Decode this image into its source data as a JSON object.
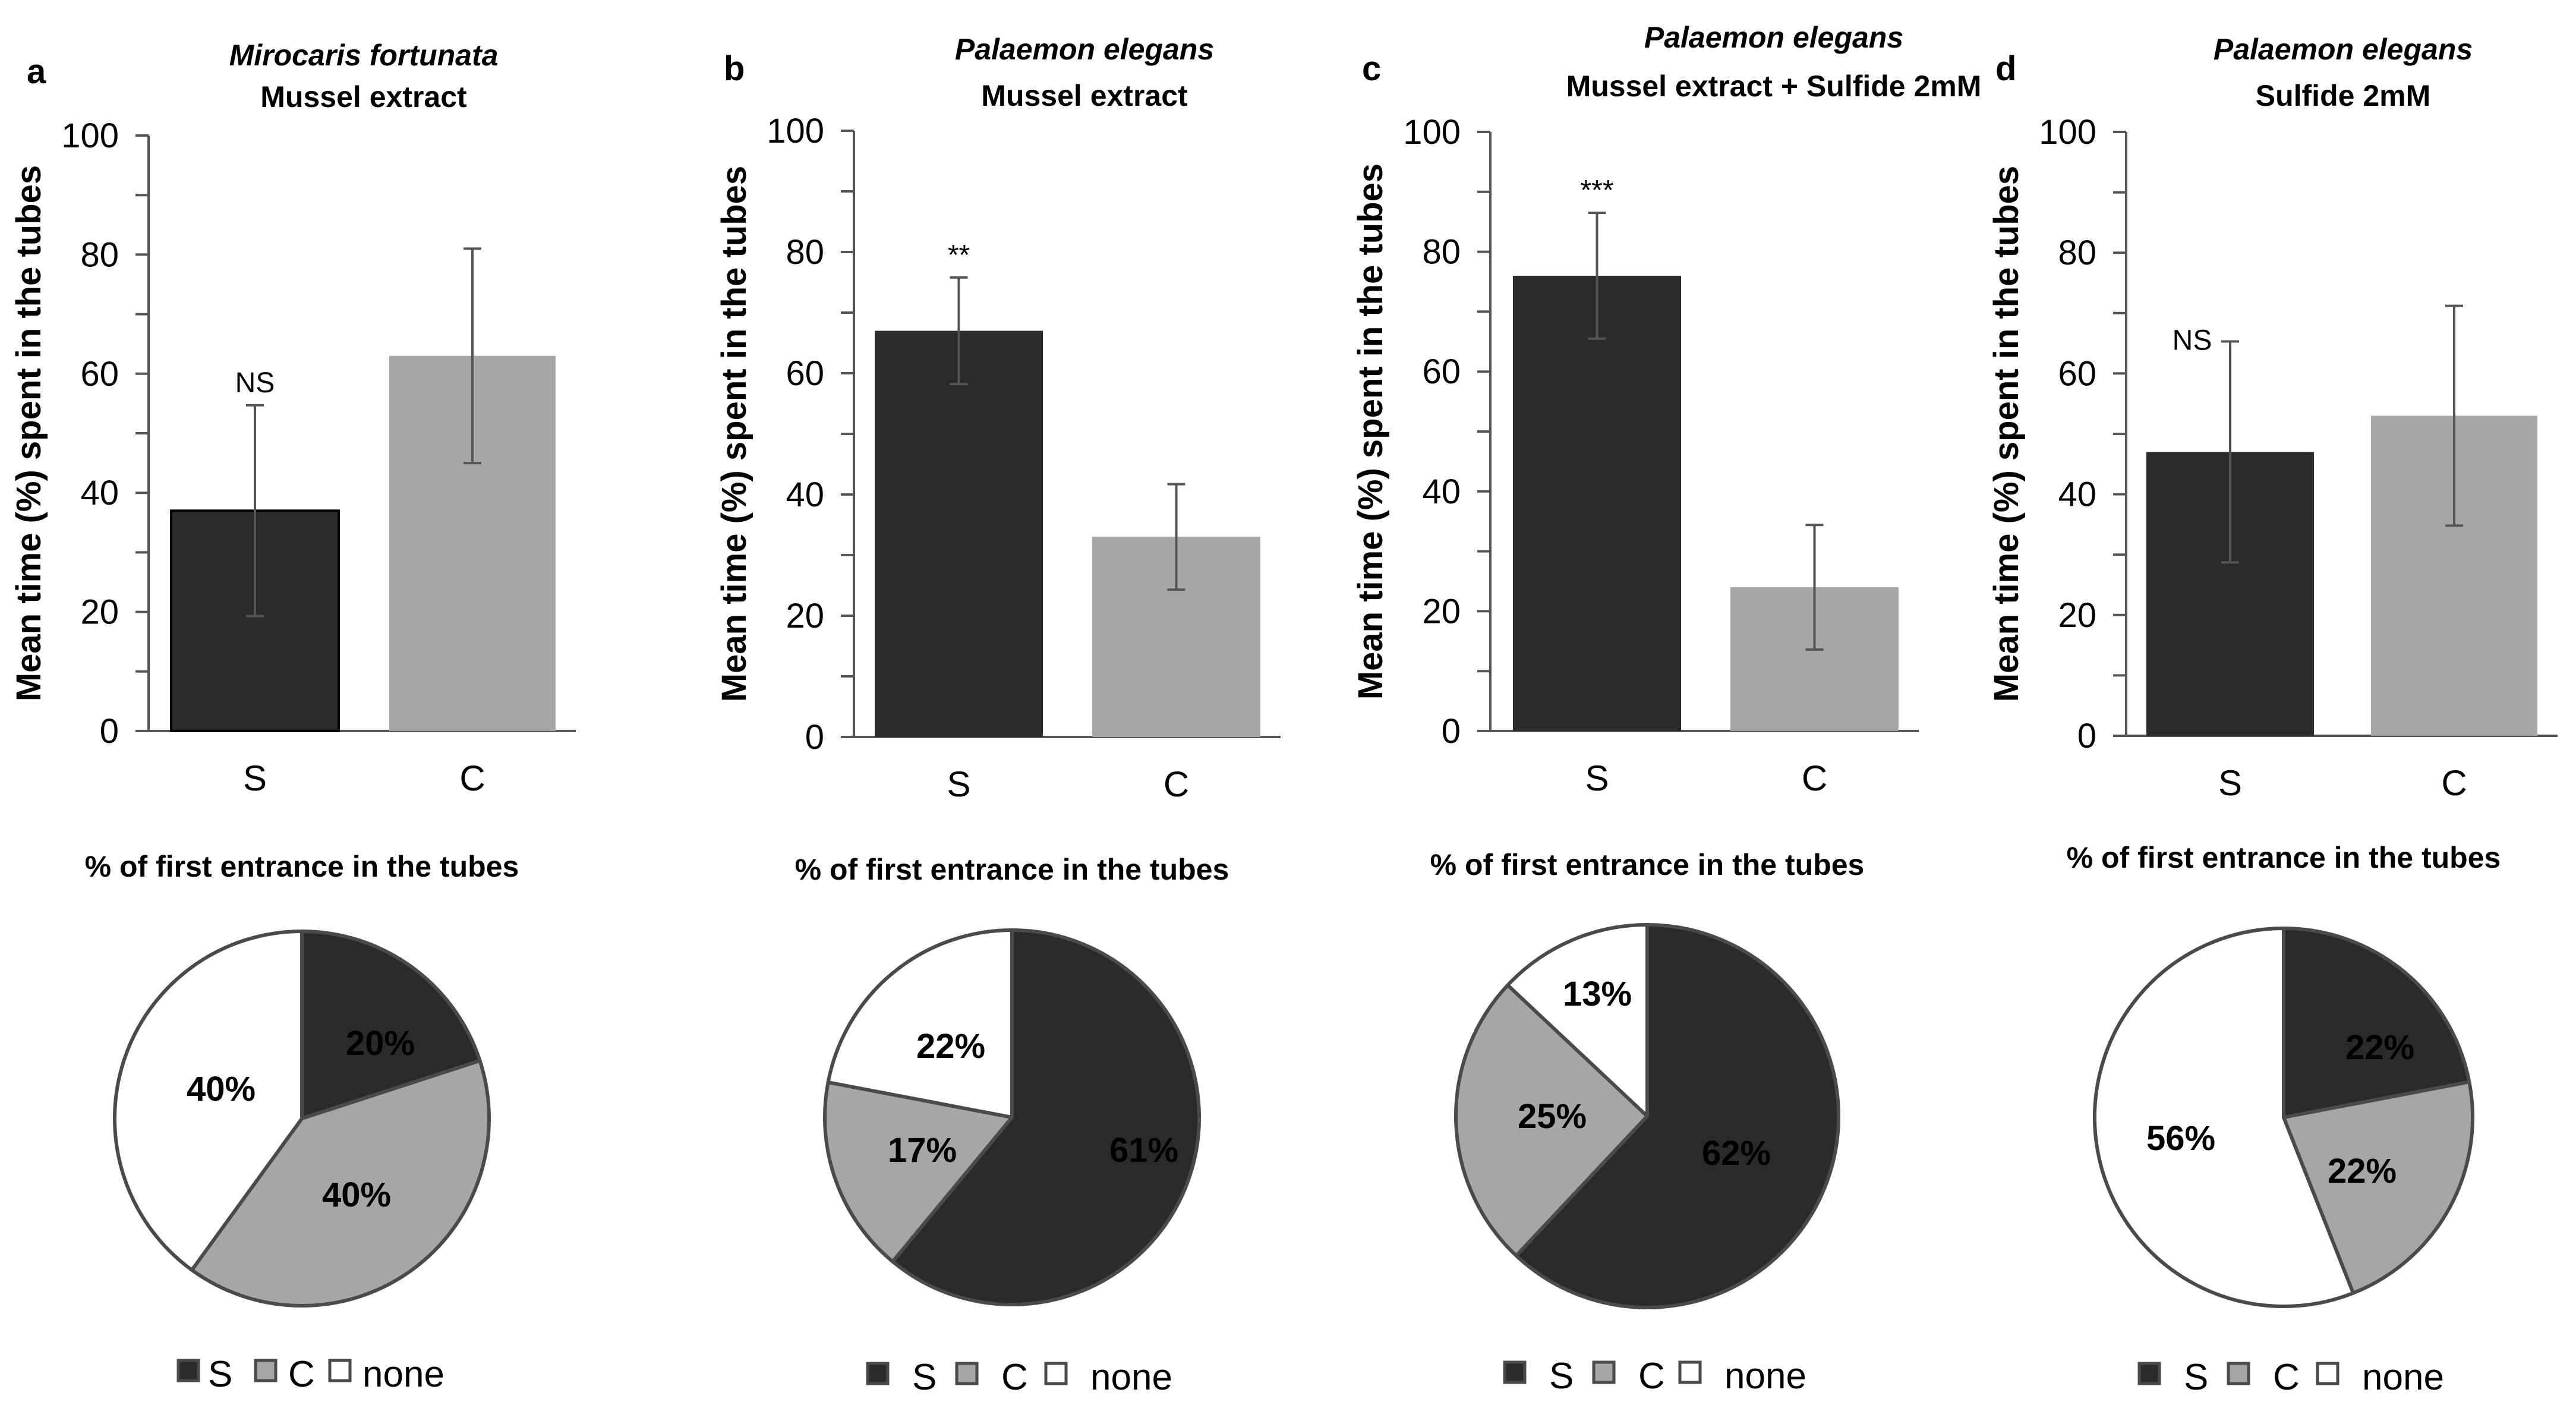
{
  "panels": [
    {
      "letter": "a",
      "species": "Mirocaris fortunata",
      "condition": "Mussel extract",
      "bar_chart": {
        "type": "bar",
        "categories": [
          "S",
          "C"
        ],
        "values": [
          37,
          63
        ],
        "errors": [
          17.7,
          18
        ],
        "ylabel": "Mean time (%) spent in the tubes",
        "ylim": [
          0,
          100
        ],
        "yticks": [
          "0",
          "20",
          "40",
          "60",
          "80",
          "100"
        ],
        "significance": "NS"
      },
      "pie_chart": {
        "type": "pie",
        "title": "% of first entrance in the tubes",
        "slices": [
          {
            "name": "S",
            "value": 20,
            "label": "20%"
          },
          {
            "name": "C",
            "value": 40,
            "label": "40%"
          },
          {
            "name": "none",
            "value": 40,
            "label": "40%"
          }
        ]
      },
      "legend": [
        "S",
        "C",
        "none"
      ]
    },
    {
      "letter": "b",
      "species": "Palaemon elegans",
      "condition": "Mussel extract",
      "bar_chart": {
        "type": "bar",
        "categories": [
          "S",
          "C"
        ],
        "values": [
          67,
          33
        ],
        "errors": [
          8.8,
          8.7
        ],
        "ylabel": "Mean time (%) spent in the tubes",
        "ylim": [
          0,
          100
        ],
        "yticks": [
          "0",
          "20",
          "40",
          "60",
          "80",
          "100"
        ],
        "significance": "**"
      },
      "pie_chart": {
        "type": "pie",
        "title": "% of first entrance in the tubes",
        "slices": [
          {
            "name": "S",
            "value": 61,
            "label": "61%"
          },
          {
            "name": "C",
            "value": 17,
            "label": "17%"
          },
          {
            "name": "none",
            "value": 22,
            "label": "22%"
          }
        ]
      },
      "legend": [
        "S",
        "C",
        "none"
      ]
    },
    {
      "letter": "c",
      "species": "Palaemon elegans",
      "condition": "Mussel extract + Sulfide 2mM",
      "bar_chart": {
        "type": "bar",
        "categories": [
          "S",
          "C"
        ],
        "values": [
          76,
          24
        ],
        "errors": [
          10.5,
          10.4
        ],
        "ylabel": "Mean time (%) spent in the tubes",
        "ylim": [
          0,
          100
        ],
        "yticks": [
          "0",
          "20",
          "40",
          "60",
          "80",
          "100"
        ],
        "significance": "***"
      },
      "pie_chart": {
        "type": "pie",
        "title": "% of first entrance in the tubes",
        "slices": [
          {
            "name": "S",
            "value": 62,
            "label": "62%"
          },
          {
            "name": "C",
            "value": 25,
            "label": "25%"
          },
          {
            "name": "none",
            "value": 13,
            "label": "13%"
          }
        ]
      },
      "legend": [
        "S",
        "C",
        "none"
      ]
    },
    {
      "letter": "d",
      "species": "Palaemon elegans",
      "condition": "Sulfide 2mM",
      "bar_chart": {
        "type": "bar",
        "categories": [
          "S",
          "C"
        ],
        "values": [
          47,
          53
        ],
        "errors": [
          18.3,
          18.2
        ],
        "ylabel": "Mean time (%) spent in the tubes",
        "ylim": [
          0,
          100
        ],
        "yticks": [
          "0",
          "20",
          "40",
          "60",
          "80",
          "100"
        ],
        "significance": "NS"
      },
      "pie_chart": {
        "type": "pie",
        "title": "% of first entrance in the tubes",
        "slices": [
          {
            "name": "S",
            "value": 22,
            "label": "22%"
          },
          {
            "name": "C",
            "value": 22,
            "label": "22%"
          },
          {
            "name": "none",
            "value": 56,
            "label": "56%"
          }
        ]
      },
      "legend": [
        "S",
        "C",
        "none"
      ]
    }
  ],
  "chart_data": [
    {
      "type": "bar",
      "panel": "a",
      "title": "Mirocaris fortunata Mussel extract",
      "categories": [
        "S",
        "C"
      ],
      "values": [
        37,
        63
      ],
      "errors": [
        17.7,
        18
      ],
      "ylabel": "Mean time (%) spent in the tubes",
      "ylim": [
        0,
        100
      ],
      "annotation": "NS"
    },
    {
      "type": "pie",
      "panel": "a",
      "title": "% of first entrance in the tubes",
      "categories": [
        "S",
        "C",
        "none"
      ],
      "values": [
        20,
        40,
        40
      ]
    },
    {
      "type": "bar",
      "panel": "b",
      "title": "Palaemon elegans Mussel extract",
      "categories": [
        "S",
        "C"
      ],
      "values": [
        67,
        33
      ],
      "errors": [
        8.8,
        8.7
      ],
      "ylabel": "Mean time (%) spent in the tubes",
      "ylim": [
        0,
        100
      ],
      "annotation": "**"
    },
    {
      "type": "pie",
      "panel": "b",
      "title": "% of first entrance in the tubes",
      "categories": [
        "S",
        "C",
        "none"
      ],
      "values": [
        61,
        17,
        22
      ]
    },
    {
      "type": "bar",
      "panel": "c",
      "title": "Palaemon elegans Mussel extract + Sulfide 2mM",
      "categories": [
        "S",
        "C"
      ],
      "values": [
        76,
        24
      ],
      "errors": [
        10.5,
        10.4
      ],
      "ylabel": "Mean time (%) spent in the tubes",
      "ylim": [
        0,
        100
      ],
      "annotation": "***"
    },
    {
      "type": "pie",
      "panel": "c",
      "title": "% of first entrance in the tubes",
      "categories": [
        "S",
        "C",
        "none"
      ],
      "values": [
        62,
        25,
        13
      ]
    },
    {
      "type": "bar",
      "panel": "d",
      "title": "Palaemon elegans Sulfide 2mM",
      "categories": [
        "S",
        "C"
      ],
      "values": [
        47,
        53
      ],
      "errors": [
        18.3,
        18.2
      ],
      "ylabel": "Mean time (%) spent in the tubes",
      "ylim": [
        0,
        100
      ],
      "annotation": "NS"
    },
    {
      "type": "pie",
      "panel": "d",
      "title": "% of first entrance in the tubes",
      "categories": [
        "S",
        "C",
        "none"
      ],
      "values": [
        22,
        22,
        56
      ]
    }
  ],
  "colors": {
    "S": "#2a2a2a",
    "C": "#a6a6a6",
    "none": "#ffffff",
    "axis": "#555555",
    "error": "#555555",
    "pie_stroke": "#4a4a4a"
  }
}
